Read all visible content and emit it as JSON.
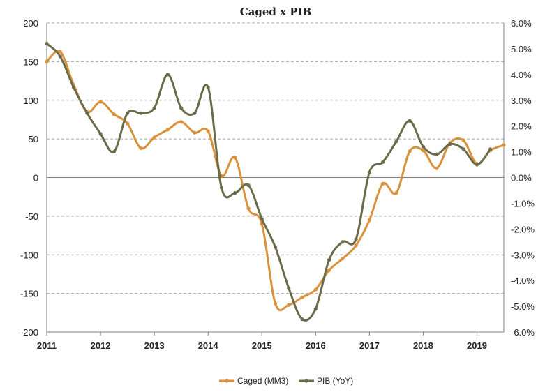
{
  "chart_data": {
    "type": "line",
    "title": "Caged x PIB",
    "xlabel": "",
    "ylabel_left": "",
    "ylabel_right": "",
    "x_ticks": [
      "2011",
      "2012",
      "2013",
      "2014",
      "2015",
      "2016",
      "2017",
      "2018",
      "2019"
    ],
    "xlim": [
      2011,
      2019.5
    ],
    "ylim_left": [
      -200,
      200
    ],
    "ylim_right": [
      -6.0,
      6.0
    ],
    "left_ticks": [
      "200",
      "150",
      "100",
      "50",
      "0",
      "-50",
      "-100",
      "-150",
      "-200"
    ],
    "right_ticks": [
      "6.0%",
      "5.0%",
      "4.0%",
      "3.0%",
      "2.0%",
      "1.0%",
      "0.0%",
      "-1.0%",
      "-2.0%",
      "-3.0%",
      "-4.0%",
      "-5.0%",
      "-6.0%"
    ],
    "grid": true,
    "legend_position": "bottom",
    "series": [
      {
        "name": "Caged (MM3)",
        "axis": "left",
        "color": "#D9913A",
        "x": [
          2011.0,
          2011.25,
          2011.5,
          2011.75,
          2012.0,
          2012.25,
          2012.5,
          2012.75,
          2013.0,
          2013.25,
          2013.5,
          2013.75,
          2014.0,
          2014.25,
          2014.5,
          2014.75,
          2015.0,
          2015.25,
          2015.5,
          2015.75,
          2016.0,
          2016.25,
          2016.5,
          2016.75,
          2017.0,
          2017.25,
          2017.5,
          2017.75,
          2018.0,
          2018.25,
          2018.5,
          2018.75,
          2019.0,
          2019.25,
          2019.5
        ],
        "values": [
          150,
          163,
          120,
          85,
          98,
          82,
          70,
          38,
          52,
          62,
          72,
          58,
          60,
          2,
          26,
          -40,
          -60,
          -163,
          -165,
          -155,
          -145,
          -120,
          -105,
          -88,
          -55,
          -8,
          -20,
          34,
          35,
          12,
          45,
          48,
          18,
          35,
          42
        ]
      },
      {
        "name": "PIB (YoY)",
        "axis": "right",
        "color": "#6B6B4A",
        "x": [
          2011.0,
          2011.25,
          2011.5,
          2011.75,
          2012.0,
          2012.25,
          2012.5,
          2012.75,
          2013.0,
          2013.25,
          2013.5,
          2013.75,
          2014.0,
          2014.25,
          2014.5,
          2014.75,
          2015.0,
          2015.25,
          2015.5,
          2015.75,
          2016.0,
          2016.25,
          2016.5,
          2016.75,
          2017.0,
          2017.25,
          2017.5,
          2017.75,
          2018.0,
          2018.25,
          2018.5,
          2018.75,
          2019.0,
          2019.25
        ],
        "values": [
          5.2,
          4.7,
          3.5,
          2.5,
          1.7,
          1.0,
          2.5,
          2.5,
          2.7,
          4.0,
          2.7,
          2.5,
          3.5,
          -0.4,
          -0.6,
          -0.3,
          -1.6,
          -2.7,
          -4.3,
          -5.5,
          -5.1,
          -3.2,
          -2.5,
          -2.4,
          0.2,
          0.6,
          1.4,
          2.2,
          1.2,
          0.9,
          1.3,
          1.1,
          0.5,
          1.1
        ]
      }
    ]
  }
}
